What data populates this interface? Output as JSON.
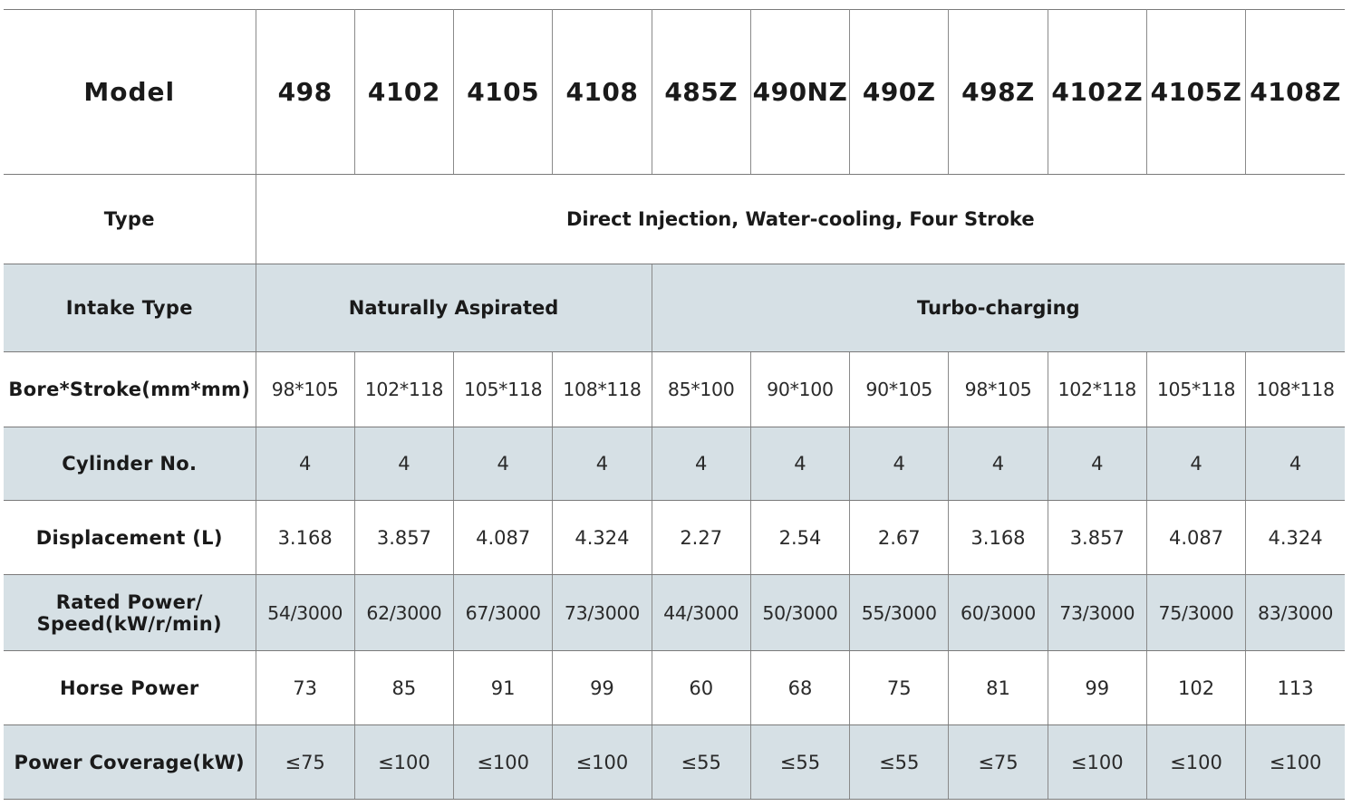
{
  "table": {
    "row_labels": {
      "model": "Model",
      "type": "Type",
      "intake": "Intake Type",
      "bore": "Bore*Stroke(mm*mm)",
      "cylinder": "Cylinder No.",
      "displacement": "Displacement (L)",
      "rated_line1": "Rated Power/",
      "rated_line2": "Speed(kW/r/min)",
      "horse_power": "Horse Power",
      "coverage": "Power Coverage(kW)"
    },
    "models": [
      "498",
      "4102",
      "4105",
      "4108",
      "485Z",
      "490NZ",
      "490Z",
      "498Z",
      "4102Z",
      "4105Z",
      "4108Z"
    ],
    "type_value": "Direct Injection, Water-cooling, Four Stroke",
    "intake_groups": [
      {
        "label": "Naturally Aspirated",
        "span": 4
      },
      {
        "label": "Turbo-charging",
        "span": 7
      }
    ],
    "bore_stroke": [
      "98*105",
      "102*118",
      "105*118",
      "108*118",
      "85*100",
      "90*100",
      "90*105",
      "98*105",
      "102*118",
      "105*118",
      "108*118"
    ],
    "cylinders": [
      "4",
      "4",
      "4",
      "4",
      "4",
      "4",
      "4",
      "4",
      "4",
      "4",
      "4"
    ],
    "displacement": [
      "3.168",
      "3.857",
      "4.087",
      "4.324",
      "2.27",
      "2.54",
      "2.67",
      "3.168",
      "3.857",
      "4.087",
      "4.324"
    ],
    "rated_power_speed": [
      "54/3000",
      "62/3000",
      "67/3000",
      "73/3000",
      "44/3000",
      "50/3000",
      "55/3000",
      "60/3000",
      "73/3000",
      "75/3000",
      "83/3000"
    ],
    "horse_power": [
      "73",
      "85",
      "91",
      "99",
      "60",
      "68",
      "75",
      "81",
      "99",
      "102",
      "113"
    ],
    "power_coverage": [
      "≤75",
      "≤100",
      "≤100",
      "≤100",
      "≤55",
      "≤55",
      "≤55",
      "≤75",
      "≤100",
      "≤100",
      "≤100"
    ]
  },
  "colors": {
    "shaded_row": "#d6e0e5",
    "grid_line": "#7a7a7a",
    "text": "#1a1a1a"
  }
}
